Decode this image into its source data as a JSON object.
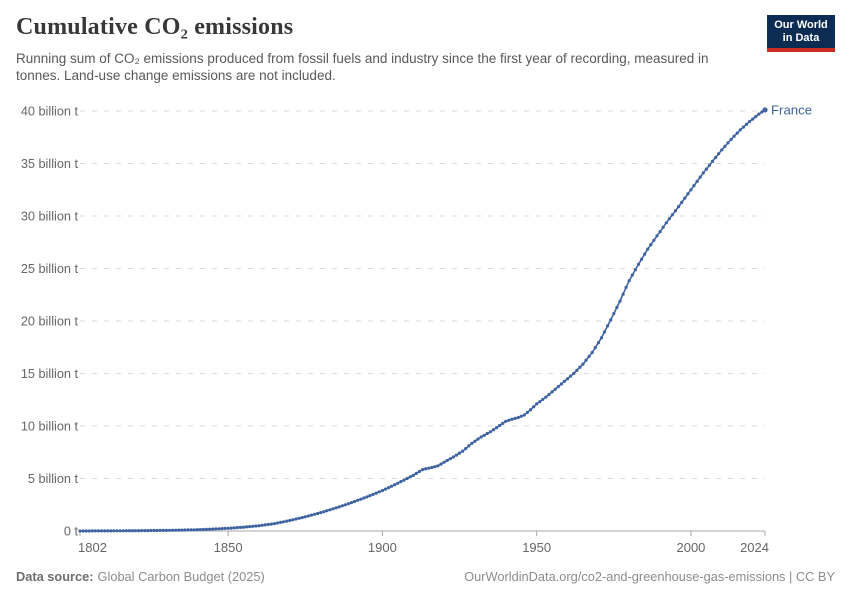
{
  "header": {
    "title": "Cumulative CO₂ emissions",
    "subtitle": "Running sum of CO₂ emissions produced from fossil fuels and industry since the first year of recording, measured in tonnes. Land-use change emissions are not included.",
    "logo": {
      "line1": "Our World",
      "line2": "in Data"
    }
  },
  "footer": {
    "source_label": "Data source:",
    "source_value": "Global Carbon Budget (2025)",
    "link": "OurWorldinData.org/co2-and-greenhouse-gas-emissions | CC BY"
  },
  "colors": {
    "line": "#3f63a0",
    "series_label": "#3f63a0",
    "grid": "#dadada",
    "axis": "#a8a8a8",
    "tick_label": "#666666",
    "logo_navy": "#0d2c54",
    "logo_red": "#cc2c24"
  },
  "chart_data": {
    "type": "line",
    "title": "Cumulative CO₂ emissions",
    "unit": "tonnes",
    "xlabel": "",
    "ylabel": "",
    "xlim": [
      1802,
      2024
    ],
    "ylim": [
      0,
      40
    ],
    "grid": "horizontal-dashed",
    "legend_position": "end-of-line",
    "x_ticks": [
      {
        "value": 1802,
        "label": "1802"
      },
      {
        "value": 1850,
        "label": "1850"
      },
      {
        "value": 1900,
        "label": "1900"
      },
      {
        "value": 1950,
        "label": "1950"
      },
      {
        "value": 2000,
        "label": "2000"
      },
      {
        "value": 2024,
        "label": "2024"
      }
    ],
    "y_ticks": [
      {
        "value": 0,
        "label": "0 t"
      },
      {
        "value": 5,
        "label": "5 billion t"
      },
      {
        "value": 10,
        "label": "10 billion t"
      },
      {
        "value": 15,
        "label": "15 billion t"
      },
      {
        "value": 20,
        "label": "20 billion t"
      },
      {
        "value": 25,
        "label": "25 billion t"
      },
      {
        "value": 30,
        "label": "30 billion t"
      },
      {
        "value": 35,
        "label": "35 billion t"
      },
      {
        "value": 40,
        "label": "40 billion t"
      }
    ],
    "value_unit_billions": "billion tonnes",
    "series": [
      {
        "name": "France",
        "color": "#3f63a0",
        "points": [
          [
            1802,
            0.001
          ],
          [
            1810,
            0.01
          ],
          [
            1820,
            0.03
          ],
          [
            1830,
            0.06
          ],
          [
            1840,
            0.12
          ],
          [
            1845,
            0.18
          ],
          [
            1850,
            0.26
          ],
          [
            1855,
            0.36
          ],
          [
            1860,
            0.5
          ],
          [
            1865,
            0.7
          ],
          [
            1870,
            1.0
          ],
          [
            1875,
            1.35
          ],
          [
            1880,
            1.75
          ],
          [
            1885,
            2.2
          ],
          [
            1890,
            2.7
          ],
          [
            1895,
            3.25
          ],
          [
            1900,
            3.85
          ],
          [
            1905,
            4.55
          ],
          [
            1910,
            5.3
          ],
          [
            1913,
            5.85
          ],
          [
            1916,
            6.05
          ],
          [
            1918,
            6.2
          ],
          [
            1920,
            6.55
          ],
          [
            1923,
            7.05
          ],
          [
            1926,
            7.6
          ],
          [
            1929,
            8.35
          ],
          [
            1932,
            8.95
          ],
          [
            1935,
            9.45
          ],
          [
            1938,
            10.05
          ],
          [
            1940,
            10.45
          ],
          [
            1942,
            10.65
          ],
          [
            1944,
            10.8
          ],
          [
            1946,
            11.05
          ],
          [
            1948,
            11.55
          ],
          [
            1950,
            12.1
          ],
          [
            1953,
            12.75
          ],
          [
            1956,
            13.5
          ],
          [
            1959,
            14.25
          ],
          [
            1962,
            15.0
          ],
          [
            1965,
            15.9
          ],
          [
            1968,
            17.0
          ],
          [
            1971,
            18.4
          ],
          [
            1974,
            20.1
          ],
          [
            1977,
            21.9
          ],
          [
            1980,
            23.85
          ],
          [
            1983,
            25.4
          ],
          [
            1986,
            26.85
          ],
          [
            1989,
            28.1
          ],
          [
            1992,
            29.35
          ],
          [
            1995,
            30.5
          ],
          [
            1998,
            31.7
          ],
          [
            2001,
            32.9
          ],
          [
            2004,
            34.1
          ],
          [
            2007,
            35.2
          ],
          [
            2010,
            36.3
          ],
          [
            2013,
            37.3
          ],
          [
            2016,
            38.2
          ],
          [
            2019,
            39.0
          ],
          [
            2022,
            39.7
          ],
          [
            2024,
            40.1
          ]
        ]
      }
    ]
  }
}
